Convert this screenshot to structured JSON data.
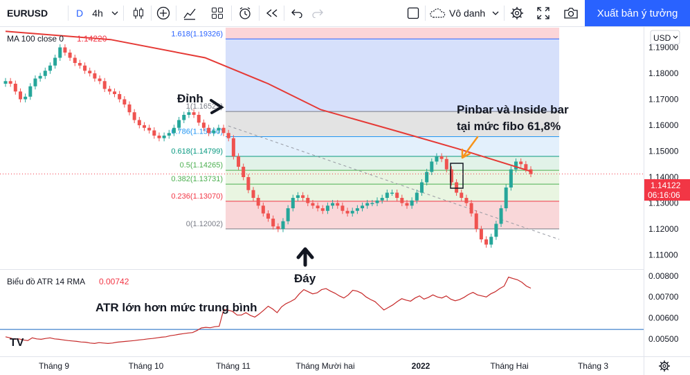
{
  "toolbar": {
    "symbol": "EURUSD",
    "interval_letter": "D",
    "interval": "4h",
    "layout_name": "Vô danh",
    "publish_label": "Xuất bản ý tưởng"
  },
  "price_pane": {
    "ma_legend_label": "MA 100 close 0",
    "ma_legend_value": "1.14220",
    "currency_label": "USD",
    "last_price_label": "1.14122",
    "countdown_label": "06:16:06"
  },
  "atr_pane": {
    "legend_label": "Biểu đồ ATR 14 RMA",
    "legend_value": "0.00742"
  },
  "annotations": {
    "top_label": "Đỉnh",
    "bottom_label": "Đáy",
    "pinbar_line1": "Pinbar và Inside bar",
    "pinbar_line2": "tại mức fibo 61,8%",
    "atr_note": "ATR lớn hơn mức trung bình"
  },
  "chart_data": [
    {
      "type": "candlestick",
      "title": "EURUSD",
      "timeframe": "4h",
      "x_ticks": [
        "Tháng 9",
        "Tháng 10",
        "Tháng 11",
        "Tháng Mười hai",
        "2022",
        "Tháng Hai",
        "Tháng 3"
      ],
      "y_ticks": [
        1.11,
        1.12,
        1.13,
        1.14,
        1.15,
        1.16,
        1.17,
        1.18,
        1.19
      ],
      "y_tick_labels": [
        "1.11000",
        "1.12000",
        "1.13000",
        "1.14000",
        "1.15000",
        "1.16000",
        "1.17000",
        "1.18000",
        "1.19000"
      ],
      "ylim": [
        1.1048,
        1.1976
      ],
      "close_series": [
        1.177,
        1.176,
        1.173,
        1.17,
        1.171,
        1.175,
        1.178,
        1.179,
        1.181,
        1.183,
        1.186,
        1.19,
        1.188,
        1.186,
        1.184,
        1.183,
        1.181,
        1.18,
        1.178,
        1.177,
        1.174,
        1.173,
        1.172,
        1.17,
        1.168,
        1.165,
        1.162,
        1.16,
        1.159,
        1.158,
        1.156,
        1.155,
        1.156,
        1.157,
        1.159,
        1.162,
        1.164,
        1.165,
        1.164,
        1.161,
        1.159,
        1.157,
        1.158,
        1.159,
        1.157,
        1.155,
        1.148,
        1.144,
        1.14,
        1.135,
        1.132,
        1.129,
        1.126,
        1.124,
        1.121,
        1.12,
        1.123,
        1.128,
        1.132,
        1.133,
        1.132,
        1.13,
        1.129,
        1.128,
        1.127,
        1.129,
        1.13,
        1.129,
        1.127,
        1.126,
        1.127,
        1.128,
        1.129,
        1.13,
        1.13,
        1.131,
        1.132,
        1.134,
        1.134,
        1.132,
        1.13,
        1.129,
        1.131,
        1.134,
        1.138,
        1.142,
        1.146,
        1.148,
        1.147,
        1.143,
        1.138,
        1.134,
        1.132,
        1.13,
        1.126,
        1.12,
        1.116,
        1.114,
        1.117,
        1.122,
        1.128,
        1.136,
        1.143,
        1.146,
        1.145,
        1.143,
        1.1412
      ],
      "ma": {
        "name": "MA 100 close 0",
        "last_value": 1.1422,
        "points": [
          [
            0,
            1.1962
          ],
          [
            0.2,
            1.193
          ],
          [
            0.38,
            1.186
          ],
          [
            0.5,
            1.176
          ],
          [
            0.6,
            1.166
          ],
          [
            0.74,
            1.158
          ],
          [
            0.86,
            1.151
          ],
          [
            1.0,
            1.1422
          ]
        ]
      },
      "fibonacci": {
        "levels": [
          {
            "ratio": "1.618",
            "price": 1.19326
          },
          {
            "ratio": "1",
            "price": 1.16529
          },
          {
            "ratio": "0.786",
            "price": 1.1556
          },
          {
            "ratio": "0.618",
            "price": 1.14799
          },
          {
            "ratio": "0.5",
            "price": 1.14265
          },
          {
            "ratio": "0.382",
            "price": 1.13731
          },
          {
            "ratio": "0.236",
            "price": 1.1307
          },
          {
            "ratio": "0",
            "price": 1.12002
          }
        ]
      },
      "last_price": 1.14122
    },
    {
      "type": "line",
      "title": "Biểu đồ ATR 14 RMA",
      "y_ticks": [
        0.005,
        0.006,
        0.007,
        0.008
      ],
      "y_tick_labels": [
        "0.00500",
        "0.00600",
        "0.00700",
        "0.00800"
      ],
      "ylim": [
        0.0042,
        0.00823
      ],
      "reference_level": 0.00545,
      "last_value": 0.00742,
      "series": [
        {
          "name": "ATR",
          "values": [
            0.0051,
            0.00505,
            0.00498,
            0.005,
            0.00495,
            0.00492,
            0.00505,
            0.005,
            0.00498,
            0.00502,
            0.00505,
            0.005,
            0.00498,
            0.00495,
            0.00492,
            0.0049,
            0.00488,
            0.00485,
            0.00484,
            0.0048,
            0.00478,
            0.00482,
            0.0048,
            0.00478,
            0.0048,
            0.00484,
            0.00486,
            0.00488,
            0.0049,
            0.00492,
            0.00495,
            0.00497,
            0.005,
            0.00502,
            0.00505,
            0.00508,
            0.0051,
            0.00515,
            0.00518,
            0.00522,
            0.00525,
            0.00528,
            0.0053,
            0.0054,
            0.00552,
            0.00555,
            0.00553,
            0.00558,
            0.0056,
            0.0064,
            0.00637,
            0.00631,
            0.00614,
            0.00614,
            0.00625,
            0.00612,
            0.00604,
            0.00619,
            0.00637,
            0.00656,
            0.00643,
            0.00625,
            0.00653,
            0.00668,
            0.00678,
            0.0069,
            0.00715,
            0.00735,
            0.00725,
            0.00715,
            0.0072,
            0.00735,
            0.0074,
            0.00728,
            0.00718,
            0.00705,
            0.00695,
            0.0071,
            0.00732,
            0.00728,
            0.00718,
            0.007,
            0.00688,
            0.00678,
            0.00658,
            0.00638,
            0.0065,
            0.00662,
            0.00678,
            0.00692,
            0.00685,
            0.0068,
            0.00695,
            0.00705,
            0.0069,
            0.00698,
            0.0071,
            0.007,
            0.00695,
            0.00705,
            0.0069,
            0.00682,
            0.00688,
            0.00698,
            0.00712,
            0.00722,
            0.0071,
            0.00705,
            0.007,
            0.00715,
            0.00725,
            0.0074,
            0.00752,
            0.00795,
            0.00788,
            0.00782,
            0.0077,
            0.00752,
            0.00742
          ]
        }
      ]
    }
  ]
}
